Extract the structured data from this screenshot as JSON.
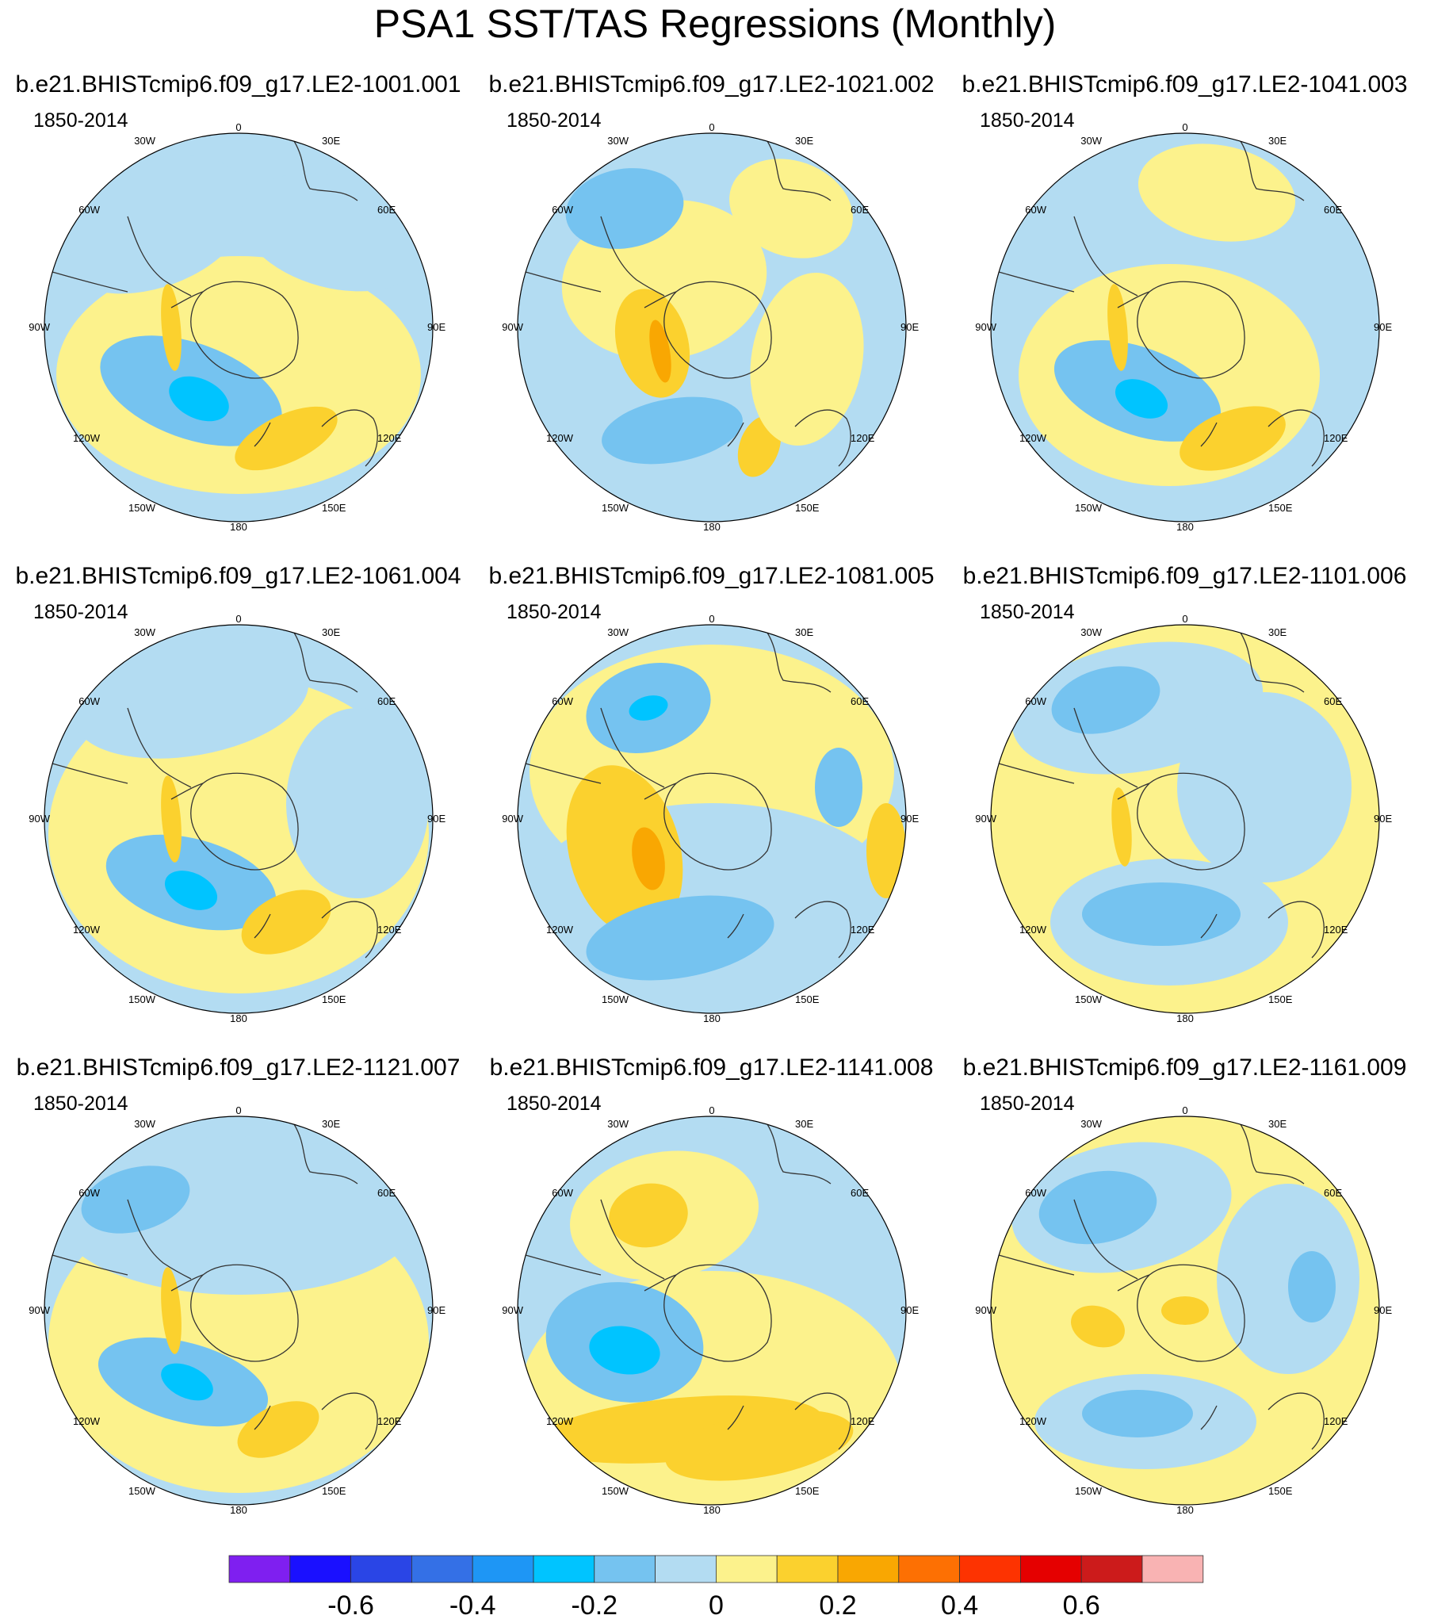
{
  "title": "PSA1 SST/TAS Regressions (Monthly)",
  "period": "1850-2014",
  "longitude_labels": [
    "0",
    "30E",
    "60E",
    "90E",
    "120E",
    "150E",
    "180",
    "150W",
    "120W",
    "90W",
    "60W",
    "30W"
  ],
  "panels": [
    {
      "case": "b.e21.BHISTcmip6.f09_g17.LE2-1001.001",
      "period": "1850-2014"
    },
    {
      "case": "b.e21.BHISTcmip6.f09_g17.LE2-1021.002",
      "period": "1850-2014"
    },
    {
      "case": "b.e21.BHISTcmip6.f09_g17.LE2-1041.003",
      "period": "1850-2014"
    },
    {
      "case": "b.e21.BHISTcmip6.f09_g17.LE2-1061.004",
      "period": "1850-2014"
    },
    {
      "case": "b.e21.BHISTcmip6.f09_g17.LE2-1081.005",
      "period": "1850-2014"
    },
    {
      "case": "b.e21.BHISTcmip6.f09_g17.LE2-1101.006",
      "period": "1850-2014"
    },
    {
      "case": "b.e21.BHISTcmip6.f09_g17.LE2-1121.007",
      "period": "1850-2014"
    },
    {
      "case": "b.e21.BHISTcmip6.f09_g17.LE2-1141.008",
      "period": "1850-2014"
    },
    {
      "case": "b.e21.BHISTcmip6.f09_g17.LE2-1161.009",
      "period": "1850-2014"
    }
  ],
  "colorbar": {
    "colors": [
      "#7f1ff0",
      "#1a10ff",
      "#2a45e6",
      "#3470e6",
      "#1e96f5",
      "#00c4ff",
      "#75c3f0",
      "#b3dcf2",
      "#fcf28c",
      "#fbd12e",
      "#f9a702",
      "#fd7003",
      "#fd3301",
      "#e50000",
      "#cc1b1b",
      "#f9b3b3"
    ],
    "tick_labels": [
      "-0.6",
      "-0.4",
      "-0.2",
      "0",
      "0.2",
      "0.4",
      "0.6"
    ]
  },
  "map_colors": {
    "ocean_light_blue": "#b3dcf2",
    "mid_blue": "#75c3f0",
    "deep_blue": "#00c4ff",
    "light_yellow": "#fcf28c",
    "gold": "#fbd12e",
    "orange": "#f9a702"
  }
}
